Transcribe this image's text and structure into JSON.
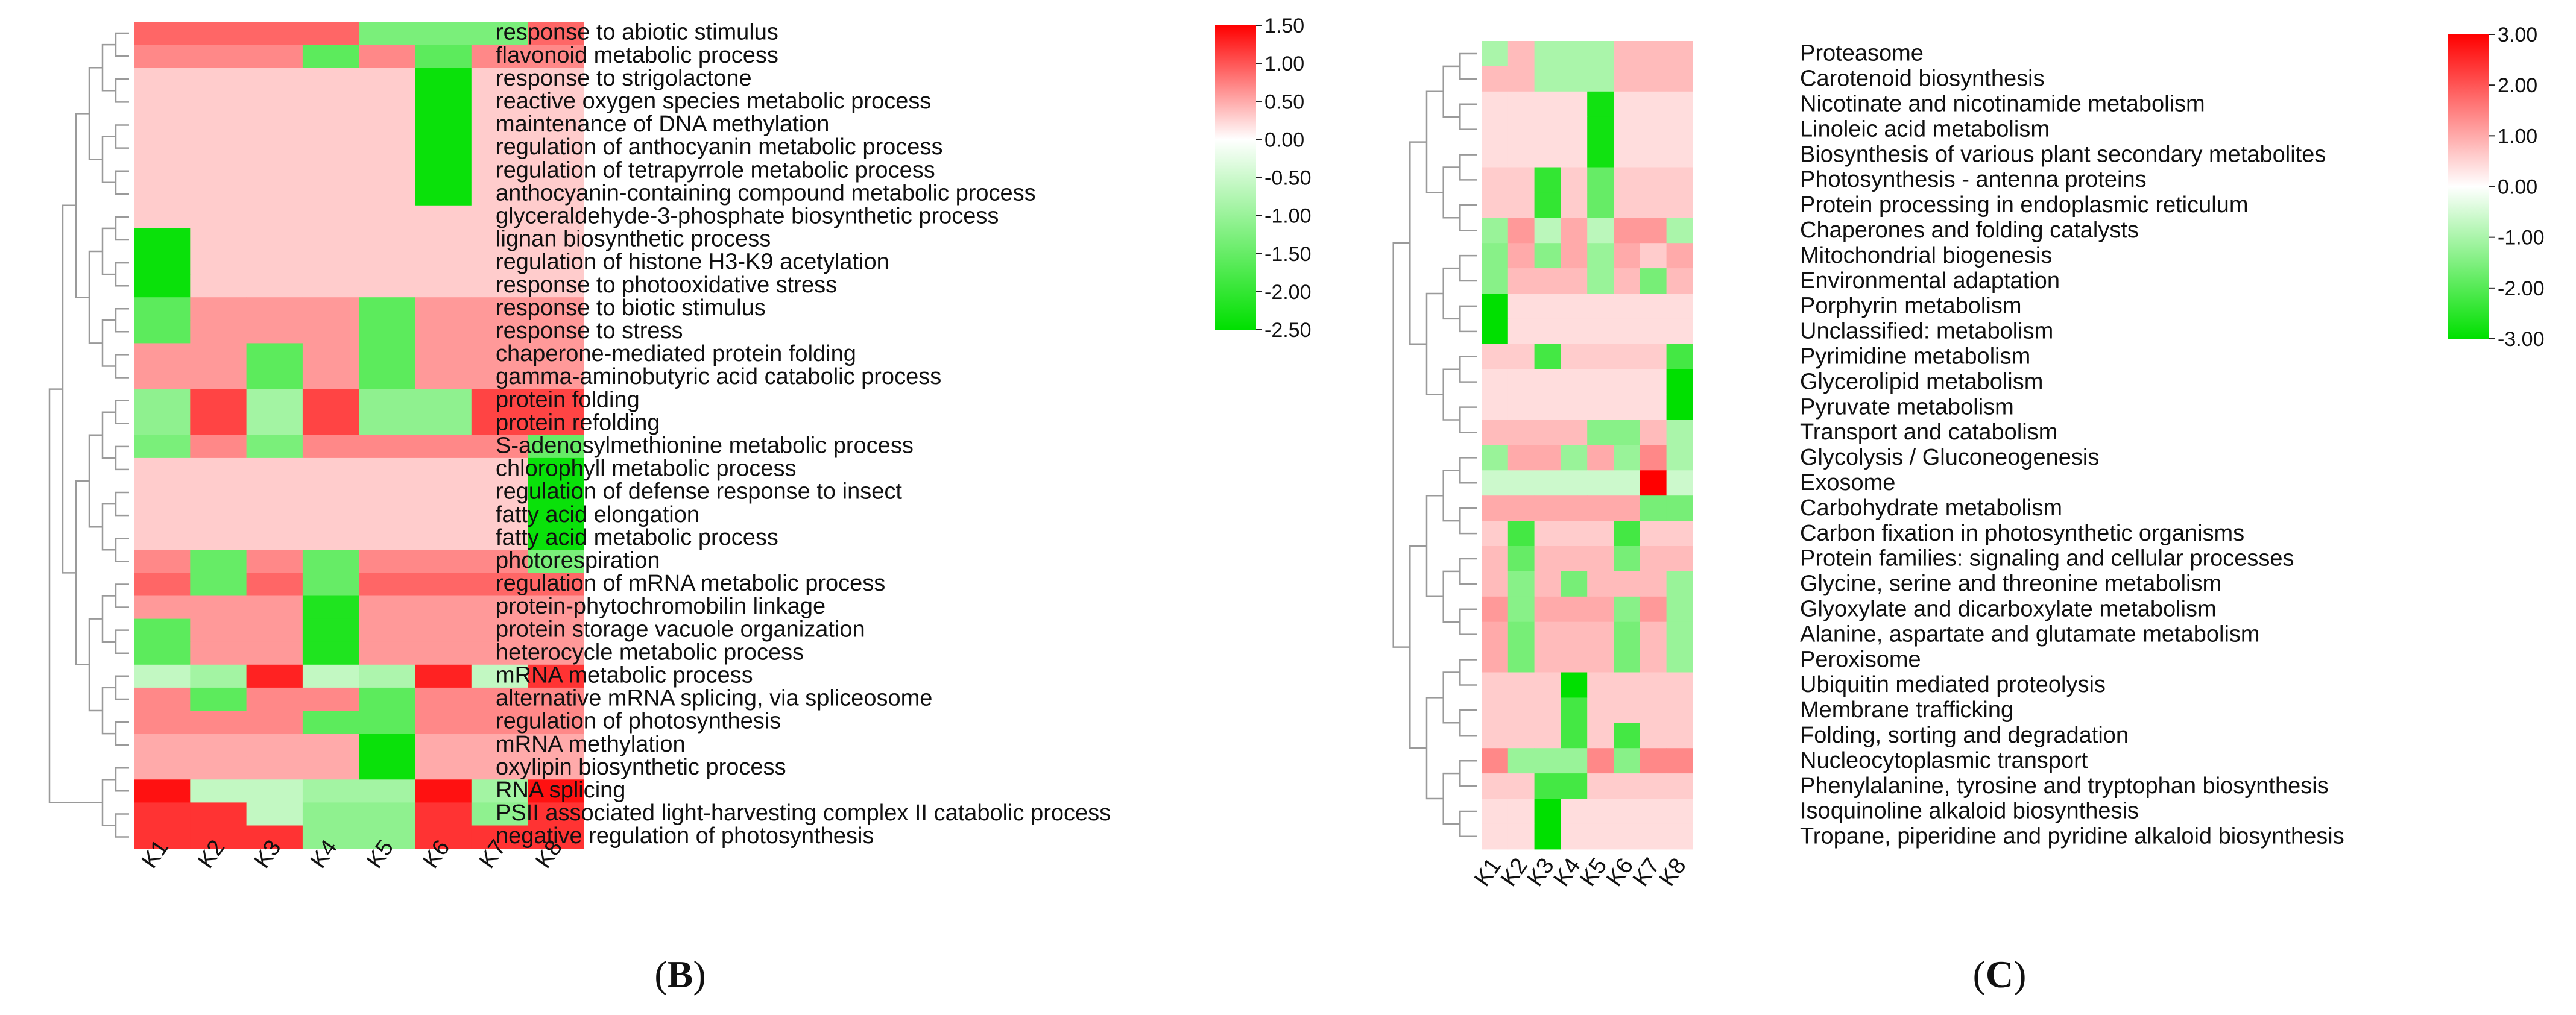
{
  "chart_data": [
    {
      "type": "heatmap",
      "panel_label": "B",
      "columns": [
        "K1",
        "K2",
        "K3",
        "K4",
        "K5",
        "K6",
        "K7",
        "K8"
      ],
      "rows": [
        "response to abiotic stimulus",
        "flavonoid metabolic process",
        "response to strigolactone",
        "reactive oxygen species metabolic process",
        "maintenance of DNA methylation",
        "regulation of anthocyanin metabolic process",
        "regulation of tetrapyrrole metabolic process",
        "anthocyanin-containing compound metabolic process",
        "glyceraldehyde-3-phosphate biosynthetic process",
        "lignan biosynthetic process",
        "regulation of histone H3-K9 acetylation",
        "response to photooxidative stress",
        "response to biotic stimulus",
        "response to stress",
        "chaperone-mediated protein folding",
        "gamma-aminobutyric acid catabolic process",
        "protein folding",
        "protein refolding",
        "S-adenosylmethionine metabolic process",
        "chlorophyll metabolic process",
        "regulation of defense response to insect",
        "fatty acid elongation",
        "fatty acid metabolic process",
        "photorespiration",
        "regulation of mRNA metabolic process",
        "protein-phytochromobilin linkage",
        "protein storage vacuole organization",
        "heterocycle metabolic process",
        "mRNA metabolic process",
        "alternative mRNA splicing, via spliceosome",
        "regulation of photosynthesis",
        "mRNA methylation",
        "oxylipin biosynthetic process",
        "RNA splicing",
        "PSII associated light-harvesting complex II catabolic process",
        "negative regulation of photosynthesis"
      ],
      "values": [
        [
          0.9,
          0.9,
          0.9,
          0.9,
          -1.3,
          -1.3,
          -1.3,
          0.9
        ],
        [
          0.7,
          0.7,
          0.7,
          -1.6,
          0.7,
          -1.6,
          0.7,
          0.7
        ],
        [
          0.3,
          0.3,
          0.3,
          0.3,
          0.3,
          -2.4,
          0.3,
          0.3
        ],
        [
          0.3,
          0.3,
          0.3,
          0.3,
          0.3,
          -2.4,
          0.3,
          0.3
        ],
        [
          0.3,
          0.3,
          0.3,
          0.3,
          0.3,
          -2.4,
          0.3,
          0.3
        ],
        [
          0.3,
          0.3,
          0.3,
          0.3,
          0.3,
          -2.4,
          0.3,
          0.3
        ],
        [
          0.3,
          0.3,
          0.3,
          0.3,
          0.3,
          -2.4,
          0.3,
          0.3
        ],
        [
          0.3,
          0.3,
          0.3,
          0.3,
          0.3,
          -2.4,
          0.3,
          0.3
        ],
        [
          0.3,
          0.3,
          0.3,
          0.3,
          0.3,
          0.3,
          0.3,
          0.3
        ],
        [
          -2.4,
          0.3,
          0.3,
          0.3,
          0.3,
          0.3,
          0.3,
          0.3
        ],
        [
          -2.4,
          0.3,
          0.3,
          0.3,
          0.3,
          0.3,
          0.3,
          0.3
        ],
        [
          -2.4,
          0.3,
          0.3,
          0.3,
          0.3,
          0.3,
          0.3,
          0.3
        ],
        [
          -1.6,
          0.6,
          0.6,
          0.6,
          -1.6,
          0.6,
          0.6,
          0.6
        ],
        [
          -1.6,
          0.6,
          0.6,
          0.6,
          -1.6,
          0.6,
          0.6,
          0.6
        ],
        [
          0.6,
          0.6,
          -1.6,
          0.6,
          -1.6,
          0.6,
          0.6,
          0.6
        ],
        [
          0.6,
          0.6,
          -1.6,
          0.6,
          -1.6,
          0.6,
          0.6,
          0.6
        ],
        [
          -1.1,
          1.1,
          -0.9,
          1.1,
          -1.1,
          -1.1,
          1.1,
          1.1
        ],
        [
          -1.1,
          1.1,
          -0.9,
          1.1,
          -1.1,
          -1.1,
          1.1,
          1.1
        ],
        [
          -1.3,
          0.7,
          -1.3,
          0.7,
          0.7,
          0.7,
          0.7,
          -1.5
        ],
        [
          0.3,
          0.3,
          0.3,
          0.3,
          0.3,
          0.3,
          0.3,
          -2.4
        ],
        [
          0.3,
          0.3,
          0.3,
          0.3,
          0.3,
          0.3,
          0.3,
          -2.4
        ],
        [
          0.3,
          0.3,
          0.3,
          0.3,
          0.3,
          0.3,
          0.3,
          -2.4
        ],
        [
          0.3,
          0.3,
          0.3,
          0.3,
          0.3,
          0.3,
          0.3,
          -2.4
        ],
        [
          0.7,
          -1.5,
          0.7,
          -1.5,
          0.7,
          0.7,
          0.7,
          -1.3
        ],
        [
          0.9,
          -1.5,
          0.9,
          -1.5,
          0.9,
          0.9,
          0.9,
          0.9
        ],
        [
          0.6,
          0.6,
          0.6,
          -2.2,
          0.6,
          0.6,
          0.6,
          0.6
        ],
        [
          -1.6,
          0.6,
          0.6,
          -2.2,
          0.6,
          0.6,
          0.6,
          0.6
        ],
        [
          -1.6,
          0.6,
          0.6,
          -2.2,
          0.6,
          0.6,
          0.6,
          0.6
        ],
        [
          -0.6,
          -0.9,
          1.3,
          -0.6,
          -0.8,
          1.3,
          -0.6,
          1.2
        ],
        [
          0.7,
          -1.6,
          0.7,
          0.7,
          -1.6,
          0.7,
          0.7,
          0.7
        ],
        [
          0.7,
          0.7,
          0.7,
          -1.6,
          -1.6,
          0.7,
          0.7,
          0.7
        ],
        [
          0.5,
          0.5,
          0.5,
          0.5,
          -2.4,
          0.5,
          0.5,
          0.5
        ],
        [
          0.5,
          0.5,
          0.5,
          0.5,
          -2.4,
          0.5,
          0.5,
          0.5
        ],
        [
          1.4,
          -0.6,
          -0.6,
          -0.9,
          -0.9,
          1.4,
          -0.9,
          1.4
        ],
        [
          1.2,
          1.2,
          -0.6,
          -1.1,
          -1.1,
          1.2,
          -1.1,
          1.2
        ],
        [
          1.2,
          1.2,
          1.2,
          -1.1,
          -1.1,
          1.2,
          1.2,
          1.2
        ]
      ],
      "colorbar": {
        "min": -2.5,
        "max": 1.5,
        "ticks": [
          "1.50",
          "1.00",
          "0.50",
          "0.00",
          "-0.50",
          "-1.00",
          "-1.50",
          "-2.00",
          "-2.50"
        ]
      },
      "dendrogram": "rows"
    },
    {
      "type": "heatmap",
      "panel_label": "C",
      "columns": [
        "K1",
        "K2",
        "K3",
        "K4",
        "K5",
        "K6",
        "K7",
        "K8"
      ],
      "rows": [
        "Proteasome",
        "Carotenoid biosynthesis",
        "Nicotinate and nicotinamide metabolism",
        "Linoleic acid metabolism",
        "Biosynthesis of various plant secondary metabolites",
        "Photosynthesis - antenna proteins",
        "Protein processing in endoplasmic reticulum",
        "Chaperones and folding catalysts",
        "Mitochondrial biogenesis",
        "Environmental adaptation",
        "Porphyrin metabolism",
        "Unclassified: metabolism",
        "Pyrimidine metabolism",
        "Glycerolipid metabolism",
        "Pyruvate metabolism",
        "Transport and catabolism",
        "Glycolysis / Gluconeogenesis",
        "Exosome",
        "Carbohydrate metabolism",
        "Carbon fixation in photosynthetic organisms",
        "Protein families: signaling and cellular processes",
        "Glycine, serine and threonine metabolism",
        "Glyoxylate and dicarboxylate metabolism",
        "Alanine, aspartate and glutamate metabolism",
        "Peroxisome",
        "Ubiquitin mediated proteolysis",
        "Membrane trafficking",
        "Folding, sorting and degradation",
        "Nucleocytoplasmic transport",
        "Phenylalanine, tyrosine and tryptophan biosynthesis",
        "Isoquinoline alkaloid biosynthesis",
        "Tropane, piperidine and pyridine alkaloid biosynthesis"
      ],
      "values": [
        [
          -1.0,
          0.8,
          -1.0,
          -1.0,
          -1.0,
          0.8,
          0.8,
          0.8
        ],
        [
          0.8,
          0.8,
          -1.0,
          -1.0,
          -1.0,
          0.8,
          0.8,
          0.8
        ],
        [
          0.4,
          0.4,
          0.4,
          0.4,
          -2.8,
          0.4,
          0.4,
          0.4
        ],
        [
          0.4,
          0.4,
          0.4,
          0.4,
          -2.8,
          0.4,
          0.4,
          0.4
        ],
        [
          0.4,
          0.4,
          0.4,
          0.4,
          -2.8,
          0.4,
          0.4,
          0.4
        ],
        [
          0.6,
          0.6,
          -2.4,
          0.6,
          -1.8,
          0.6,
          0.6,
          0.6
        ],
        [
          0.6,
          0.6,
          -2.4,
          0.6,
          -1.8,
          0.6,
          0.6,
          0.6
        ],
        [
          -1.2,
          1.2,
          -0.8,
          1.0,
          -0.8,
          1.2,
          1.2,
          -1.0
        ],
        [
          -1.4,
          1.0,
          -1.4,
          1.0,
          -1.2,
          1.0,
          0.6,
          1.0
        ],
        [
          -1.4,
          0.8,
          0.8,
          0.8,
          -1.2,
          0.8,
          -1.6,
          0.8
        ],
        [
          -3.0,
          0.4,
          0.4,
          0.4,
          0.4,
          0.4,
          0.4,
          0.4
        ],
        [
          -3.0,
          0.4,
          0.4,
          0.4,
          0.4,
          0.4,
          0.4,
          0.4
        ],
        [
          0.6,
          0.6,
          -2.2,
          0.6,
          0.6,
          0.6,
          0.6,
          -2.2
        ],
        [
          0.4,
          0.4,
          0.4,
          0.4,
          0.4,
          0.4,
          0.4,
          -3.0
        ],
        [
          0.4,
          0.4,
          0.4,
          0.4,
          0.4,
          0.4,
          0.4,
          -3.0
        ],
        [
          0.8,
          0.8,
          0.8,
          0.8,
          -1.4,
          -1.4,
          0.8,
          -1.0
        ],
        [
          -1.2,
          1.0,
          1.0,
          -1.2,
          1.0,
          -1.2,
          1.4,
          -1.0
        ],
        [
          -0.6,
          -0.6,
          -0.6,
          -0.6,
          -0.6,
          -0.6,
          3.0,
          -0.6
        ],
        [
          1.0,
          1.0,
          1.0,
          1.0,
          1.0,
          1.0,
          -1.6,
          -1.6
        ],
        [
          0.6,
          -2.2,
          0.6,
          0.6,
          0.6,
          -2.2,
          0.6,
          0.6
        ],
        [
          0.8,
          -1.8,
          0.8,
          0.8,
          0.8,
          -1.6,
          0.8,
          0.8
        ],
        [
          0.8,
          -1.4,
          0.8,
          -1.6,
          0.8,
          0.8,
          0.8,
          -1.2
        ],
        [
          1.2,
          -1.4,
          1.0,
          1.0,
          1.0,
          -1.4,
          1.2,
          -1.2
        ],
        [
          1.0,
          -1.6,
          0.8,
          0.8,
          0.8,
          -1.6,
          0.8,
          -1.2
        ],
        [
          1.0,
          -1.6,
          0.8,
          0.8,
          0.8,
          -1.6,
          0.8,
          -1.2
        ],
        [
          0.6,
          0.6,
          0.6,
          -3.0,
          0.6,
          0.6,
          0.6,
          0.6
        ],
        [
          0.6,
          0.6,
          0.6,
          -2.2,
          0.6,
          0.6,
          0.6,
          0.6
        ],
        [
          0.6,
          0.6,
          0.6,
          -2.2,
          0.6,
          -2.2,
          0.6,
          0.6
        ],
        [
          1.4,
          -1.2,
          -1.2,
          -1.2,
          1.4,
          -1.4,
          1.4,
          1.4
        ],
        [
          0.6,
          0.6,
          -2.2,
          -2.2,
          0.6,
          0.6,
          0.6,
          0.6
        ],
        [
          0.4,
          0.4,
          -3.0,
          0.4,
          0.4,
          0.4,
          0.4,
          0.4
        ],
        [
          0.4,
          0.4,
          -3.0,
          0.4,
          0.4,
          0.4,
          0.4,
          0.4
        ]
      ],
      "colorbar": {
        "min": -3.0,
        "max": 3.0,
        "ticks": [
          "3.00",
          "2.00",
          "1.00",
          "0.00",
          "-1.00",
          "-2.00",
          "-3.00"
        ]
      },
      "dendrogram": "rows"
    }
  ]
}
